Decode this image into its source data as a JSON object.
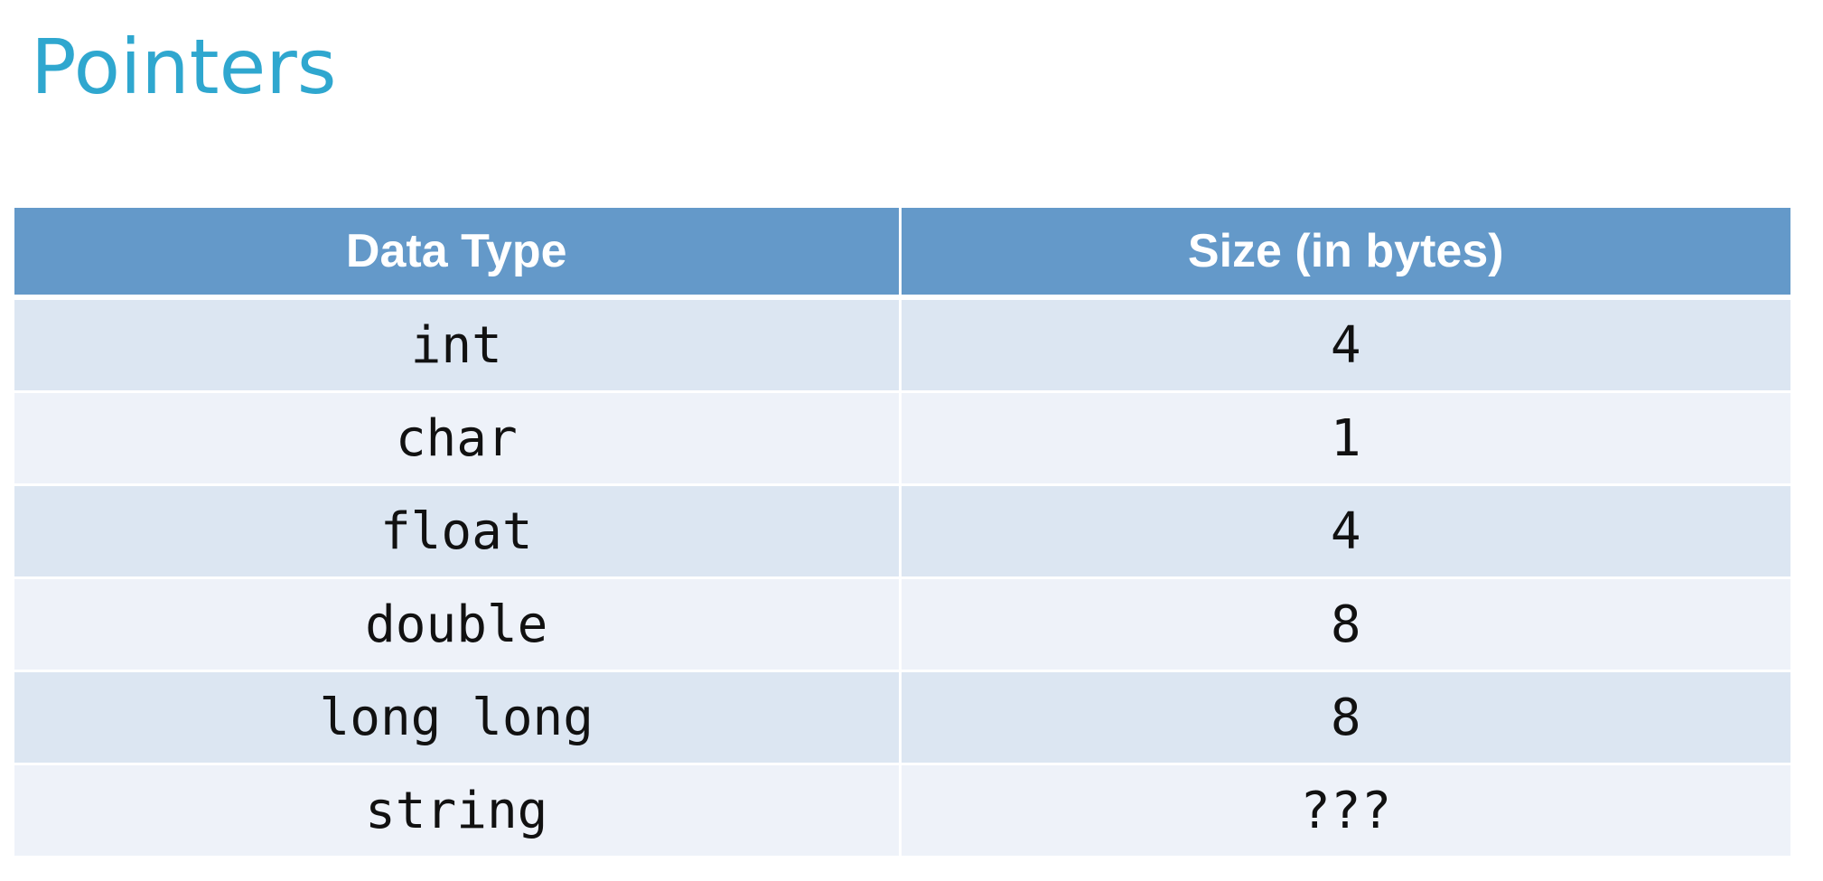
{
  "slide": {
    "title": "Pointers"
  },
  "table": {
    "headers": [
      "Data Type",
      "Size (in bytes)"
    ],
    "rows": [
      {
        "type": "int",
        "size": "4"
      },
      {
        "type": "char",
        "size": "1"
      },
      {
        "type": "float",
        "size": "4"
      },
      {
        "type": "double",
        "size": "8"
      },
      {
        "type": "long long",
        "size": "8"
      },
      {
        "type": "string",
        "size": "???"
      }
    ]
  },
  "colors": {
    "title": "#2fa7cf",
    "header_bg": "#6499c9",
    "row_odd_bg": "#dce6f2",
    "row_even_bg": "#eef2f9",
    "unknown_size": "#c00000"
  }
}
